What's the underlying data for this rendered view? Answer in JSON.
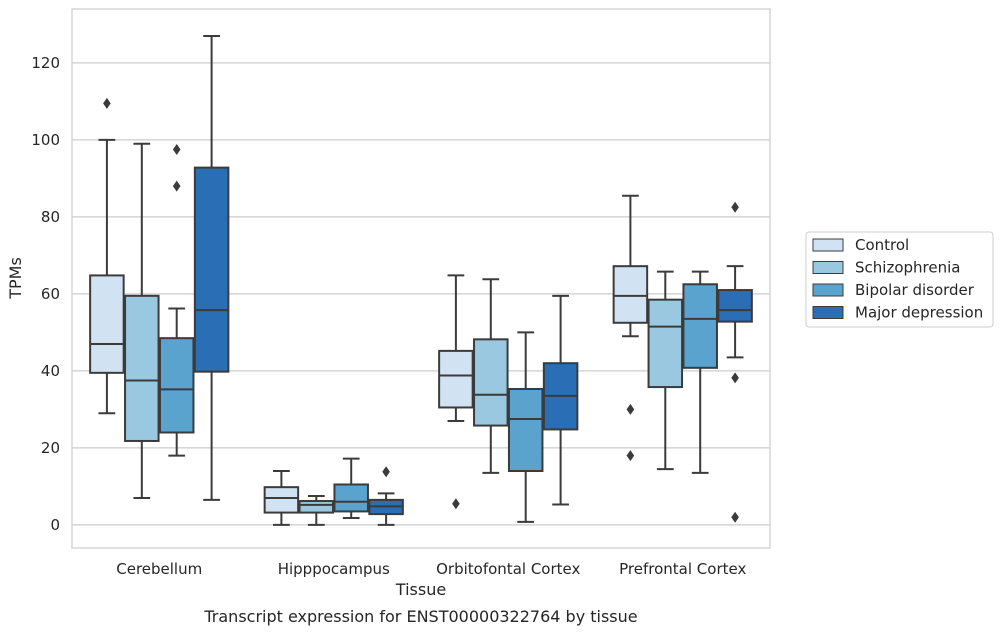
{
  "caption": "Transcript expression for ENST00000322764 by tissue",
  "chart_data": {
    "type": "box",
    "title": "",
    "xlabel": "Tissue",
    "ylabel": "TPMs",
    "ylim": [
      -6,
      134
    ],
    "yticks": [
      0,
      20,
      40,
      60,
      80,
      100,
      120
    ],
    "grid": "horizontal",
    "legend_position": "right",
    "categories": [
      "Cerebellum",
      "Hipppocampus",
      "Orbitofontal Cortex",
      "Prefrontal Cortex"
    ],
    "series": [
      {
        "name": "Control",
        "color": "#d1e3f3",
        "boxes": [
          {
            "whisker_low": 29,
            "q1": 39.5,
            "median": 47,
            "q3": 64.8,
            "whisker_high": 100,
            "outliers": [
              109.5
            ]
          },
          {
            "whisker_low": 0,
            "q1": 3.2,
            "median": 7,
            "q3": 9.8,
            "whisker_high": 14,
            "outliers": []
          },
          {
            "whisker_low": 27,
            "q1": 30.5,
            "median": 38.8,
            "q3": 45.2,
            "whisker_high": 64.8,
            "outliers": [
              5.5
            ]
          },
          {
            "whisker_low": 49,
            "q1": 52.5,
            "median": 59.5,
            "q3": 67.2,
            "whisker_high": 85.5,
            "outliers": [
              30,
              18
            ]
          }
        ]
      },
      {
        "name": "Schizophrenia",
        "color": "#9ac8e0",
        "boxes": [
          {
            "whisker_low": 7,
            "q1": 21.8,
            "median": 37.5,
            "q3": 59.5,
            "whisker_high": 99,
            "outliers": []
          },
          {
            "whisker_low": 0,
            "q1": 3.2,
            "median": 5.2,
            "q3": 6.2,
            "whisker_high": 7.5,
            "outliers": []
          },
          {
            "whisker_low": 13.5,
            "q1": 25.8,
            "median": 33.8,
            "q3": 48.2,
            "whisker_high": 63.8,
            "outliers": []
          },
          {
            "whisker_low": 14.5,
            "q1": 35.8,
            "median": 51.5,
            "q3": 58.5,
            "whisker_high": 65.8,
            "outliers": []
          }
        ]
      },
      {
        "name": "Bipolar disorder",
        "color": "#5ba3cf",
        "boxes": [
          {
            "whisker_low": 18,
            "q1": 24,
            "median": 35.2,
            "q3": 48.5,
            "whisker_high": 56.2,
            "outliers": [
              97.5,
              88
            ]
          },
          {
            "whisker_low": 1.8,
            "q1": 3.5,
            "median": 6,
            "q3": 10.5,
            "whisker_high": 17.2,
            "outliers": []
          },
          {
            "whisker_low": 0.8,
            "q1": 14,
            "median": 27.5,
            "q3": 35.3,
            "whisker_high": 50,
            "outliers": []
          },
          {
            "whisker_low": 13.5,
            "q1": 40.8,
            "median": 53.5,
            "q3": 62.5,
            "whisker_high": 65.8,
            "outliers": []
          }
        ]
      },
      {
        "name": "Major depression",
        "color": "#2a6eb5",
        "boxes": [
          {
            "whisker_low": 6.5,
            "q1": 39.8,
            "median": 55.8,
            "q3": 92.8,
            "whisker_high": 127,
            "outliers": []
          },
          {
            "whisker_low": 0,
            "q1": 2.8,
            "median": 4.8,
            "q3": 6.5,
            "whisker_high": 8.2,
            "outliers": [
              13.8
            ]
          },
          {
            "whisker_low": 5.3,
            "q1": 24.8,
            "median": 33.5,
            "q3": 42,
            "whisker_high": 59.5,
            "outliers": []
          },
          {
            "whisker_low": 43.5,
            "q1": 52.8,
            "median": 55.8,
            "q3": 61,
            "whisker_high": 67.2,
            "outliers": [
              82.5,
              38.2,
              2
            ]
          }
        ]
      }
    ]
  }
}
